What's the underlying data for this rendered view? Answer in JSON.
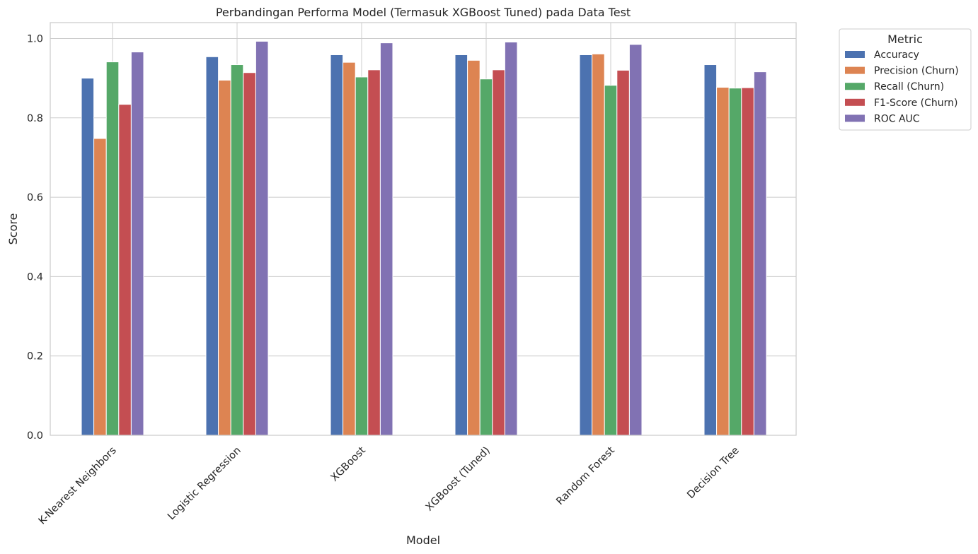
{
  "chart_data": {
    "type": "bar",
    "title": "Perbandingan Performa Model (Termasuk XGBoost Tuned) pada Data Test",
    "xlabel": "Model",
    "ylabel": "Score",
    "ylim": [
      0,
      1.04
    ],
    "yticks": [
      "0.0",
      "0.2",
      "0.4",
      "0.6",
      "0.8",
      "1.0"
    ],
    "ytick_values": [
      0,
      0.2,
      0.4,
      0.6,
      0.8,
      1.0
    ],
    "grid": true,
    "legend_title": "Metric",
    "legend_position": "outside-top-right",
    "categories": [
      "K-Nearest Neighbors",
      "Logistic Regression",
      "XGBoost",
      "XGBoost (Tuned)",
      "Random Forest",
      "Decision Tree"
    ],
    "series": [
      {
        "name": "Accuracy",
        "color": "#4c72b0",
        "values": [
          0.9,
          0.954,
          0.959,
          0.959,
          0.959,
          0.934
        ]
      },
      {
        "name": "Precision (Churn)",
        "color": "#dd8452",
        "values": [
          0.748,
          0.895,
          0.94,
          0.945,
          0.961,
          0.877
        ]
      },
      {
        "name": "Recall (Churn)",
        "color": "#55a868",
        "values": [
          0.941,
          0.934,
          0.903,
          0.898,
          0.882,
          0.875
        ]
      },
      {
        "name": "F1-Score (Churn)",
        "color": "#c44e52",
        "values": [
          0.834,
          0.914,
          0.921,
          0.921,
          0.92,
          0.876
        ]
      },
      {
        "name": "ROC AUC",
        "color": "#8172b3",
        "values": [
          0.966,
          0.993,
          0.989,
          0.991,
          0.985,
          0.916
        ]
      }
    ]
  }
}
